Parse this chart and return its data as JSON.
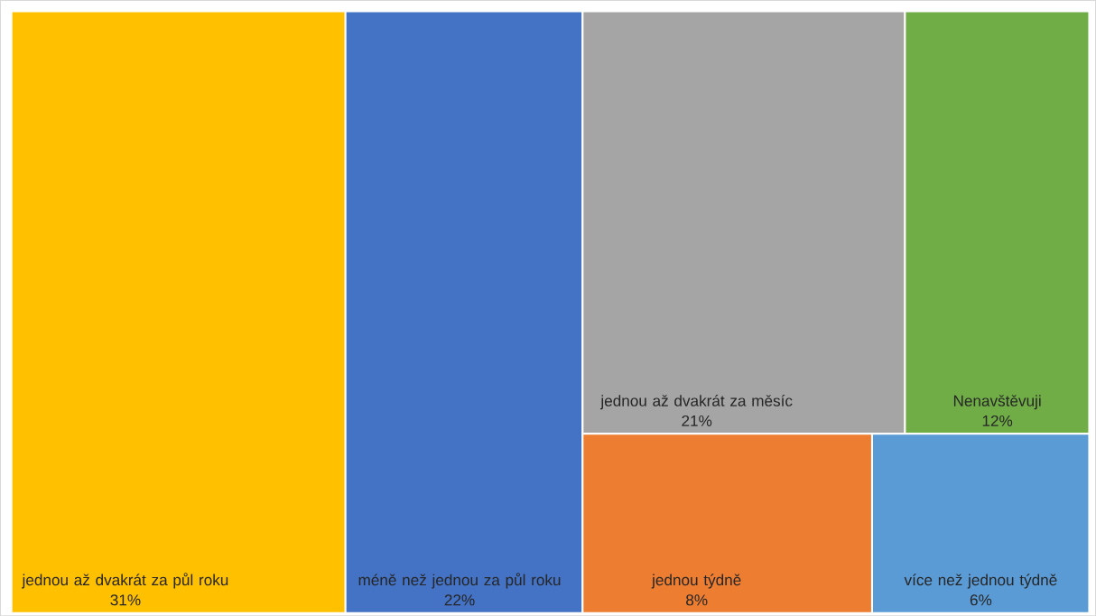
{
  "chart_data": {
    "type": "other",
    "categories": [
      "jednou až dvakrát za půl roku",
      "méně než jednou za půl roku",
      "jednou až dvakrát za měsíc",
      "Nenavštěvuji",
      "jednou týdně",
      "více než jednou týdně"
    ],
    "values": [
      31,
      22,
      21,
      12,
      8,
      6
    ],
    "value_labels": [
      "31%",
      "22%",
      "21%",
      "12%",
      "8%",
      "6%"
    ],
    "colors": [
      "#ffc000",
      "#4472c4",
      "#a5a5a5",
      "#70ad47",
      "#ed7d31",
      "#5b9bd5"
    ]
  }
}
